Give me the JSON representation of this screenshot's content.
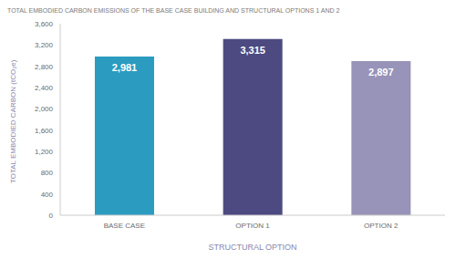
{
  "chart_data": {
    "type": "bar",
    "title": "TOTAL EMBODIED CARBON EMISSIONS OF THE BASE CASE BUILDING AND STRUCTURAL OPTIONS 1 AND 2",
    "x_label": "STRUCTURAL OPTION",
    "y_label": "TOTAL EMBODIED CARBON (tCO₂e)",
    "categories": [
      "BASE CASE",
      "OPTION 1",
      "OPTION 2"
    ],
    "values": [
      2981,
      3315,
      2897
    ],
    "value_labels": [
      "2,981",
      "3,315",
      "2,897"
    ],
    "data_labels": true,
    "colors": [
      "#2b9cc0",
      "#4c4a80",
      "#9893b8"
    ],
    "ylim": [
      0,
      3600
    ],
    "yticks": [
      0,
      400,
      800,
      {
        "value": 1200,
        "label": "1,200"
      },
      {
        "value": 1600,
        "label": "1,600"
      },
      {
        "value": 2000,
        "label": "2,000"
      },
      {
        "value": 2400,
        "label": "2,400"
      },
      {
        "value": 2800,
        "label": "2,800"
      },
      {
        "value": 3200,
        "label": "3,200"
      },
      {
        "value": 3600,
        "label": "3,600"
      }
    ],
    "grid": false
  }
}
